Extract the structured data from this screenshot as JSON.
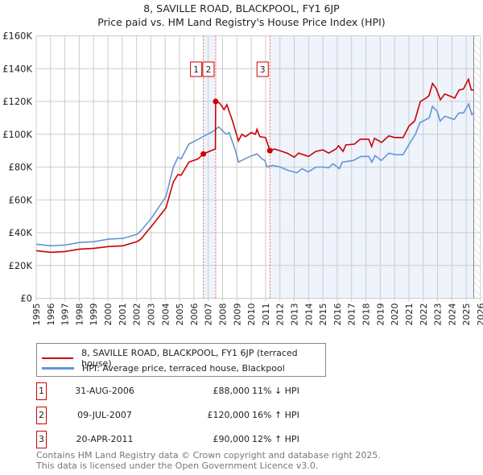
{
  "chart_data": {
    "type": "line",
    "title": "8, SAVILLE ROAD, BLACKPOOL, FY1 6JP",
    "subtitle": "Price paid vs. HM Land Registry's House Price Index (HPI)",
    "xlim": [
      1995,
      2026
    ],
    "ylim": [
      0,
      160000
    ],
    "y_ticks": [
      0,
      20000,
      40000,
      60000,
      80000,
      100000,
      120000,
      140000,
      160000
    ],
    "y_tick_labels": [
      "£0",
      "£20K",
      "£40K",
      "£60K",
      "£80K",
      "£100K",
      "£120K",
      "£140K",
      "£160K"
    ],
    "x_ticks": [
      1995,
      1996,
      1997,
      1998,
      1999,
      2000,
      2001,
      2002,
      2003,
      2004,
      2005,
      2006,
      2007,
      2008,
      2009,
      2010,
      2011,
      2012,
      2013,
      2014,
      2015,
      2016,
      2017,
      2018,
      2019,
      2020,
      2021,
      2022,
      2023,
      2024,
      2025,
      2026
    ],
    "grid": true,
    "colors": {
      "property": "#cc0000",
      "hpi": "#6495d2",
      "shade": "#eef3fc"
    },
    "series": [
      {
        "name": "8, SAVILLE ROAD, BLACKPOOL, FY1 6JP (terraced house)",
        "points": [
          [
            1995,
            29000
          ],
          [
            1996.02,
            28000
          ],
          [
            1997,
            28500
          ],
          [
            1998.03,
            30000
          ],
          [
            1999.05,
            30500
          ],
          [
            2000.02,
            31500
          ],
          [
            2001.04,
            32000
          ],
          [
            2002.03,
            34500
          ],
          [
            2002.29,
            36000
          ],
          [
            2003.05,
            44000
          ],
          [
            2004.05,
            55000
          ],
          [
            2004.57,
            71000
          ],
          [
            2004.89,
            75500
          ],
          [
            2005.11,
            75000
          ],
          [
            2005.65,
            83000
          ],
          [
            2006.3,
            85000
          ],
          [
            2006.66,
            88000
          ],
          [
            2007.2,
            90000
          ],
          [
            2007.5,
            91000
          ],
          [
            2007.52,
            120000
          ],
          [
            2007.8,
            119000
          ],
          [
            2008.1,
            115000
          ],
          [
            2008.3,
            118000
          ],
          [
            2008.7,
            108000
          ],
          [
            2009.1,
            96000
          ],
          [
            2009.35,
            100000
          ],
          [
            2009.6,
            98500
          ],
          [
            2010.0,
            101000
          ],
          [
            2010.3,
            100000
          ],
          [
            2010.4,
            103000
          ],
          [
            2010.6,
            98500
          ],
          [
            2011.0,
            98000
          ],
          [
            2011.3,
            90000
          ],
          [
            2011.6,
            91000
          ],
          [
            2012.0,
            90000
          ],
          [
            2012.5,
            88500
          ],
          [
            2013.0,
            86000
          ],
          [
            2013.3,
            88500
          ],
          [
            2014.0,
            86500
          ],
          [
            2014.5,
            89500
          ],
          [
            2015.0,
            90500
          ],
          [
            2015.4,
            88500
          ],
          [
            2015.9,
            91000
          ],
          [
            2016.1,
            93000
          ],
          [
            2016.4,
            89500
          ],
          [
            2016.6,
            93500
          ],
          [
            2017.2,
            94000
          ],
          [
            2017.6,
            97000
          ],
          [
            2018.2,
            97000
          ],
          [
            2018.4,
            92500
          ],
          [
            2018.6,
            97500
          ],
          [
            2019.1,
            95000
          ],
          [
            2019.6,
            99000
          ],
          [
            2020.0,
            98000
          ],
          [
            2020.6,
            98000
          ],
          [
            2021.0,
            105000
          ],
          [
            2021.4,
            108000
          ],
          [
            2021.8,
            120000
          ],
          [
            2022.2,
            122000
          ],
          [
            2022.4,
            123500
          ],
          [
            2022.65,
            131000
          ],
          [
            2022.9,
            128000
          ],
          [
            2023.2,
            121000
          ],
          [
            2023.5,
            124500
          ],
          [
            2023.8,
            123500
          ],
          [
            2024.2,
            122000
          ],
          [
            2024.5,
            127000
          ],
          [
            2024.8,
            127500
          ],
          [
            2025.15,
            133500
          ],
          [
            2025.35,
            127000
          ],
          [
            2025.52,
            127000
          ]
        ]
      },
      {
        "name": "HPI: Average price, terraced house, Blackpool",
        "points": [
          [
            1995,
            33000
          ],
          [
            1996.02,
            32000
          ],
          [
            1997,
            32500
          ],
          [
            1998.03,
            34000
          ],
          [
            1999.05,
            34500
          ],
          [
            2000.02,
            36000
          ],
          [
            2001.04,
            36500
          ],
          [
            2002.03,
            39000
          ],
          [
            2002.29,
            41000
          ],
          [
            2003.05,
            49000
          ],
          [
            2004.05,
            62000
          ],
          [
            2004.57,
            80000
          ],
          [
            2004.89,
            86000
          ],
          [
            2005.11,
            85000
          ],
          [
            2005.65,
            94000
          ],
          [
            2006.3,
            97000
          ],
          [
            2006.73,
            99000
          ],
          [
            2007.38,
            102000
          ],
          [
            2007.73,
            104500
          ],
          [
            2008.25,
            100000
          ],
          [
            2008.46,
            101000
          ],
          [
            2008.9,
            90000
          ],
          [
            2009.11,
            83000
          ],
          [
            2009.55,
            85000
          ],
          [
            2010.06,
            87000
          ],
          [
            2010.41,
            88000
          ],
          [
            2010.74,
            85000
          ],
          [
            2010.95,
            84000
          ],
          [
            2011.1,
            80000
          ],
          [
            2011.49,
            81000
          ],
          [
            2012.03,
            80000
          ],
          [
            2012.58,
            78000
          ],
          [
            2013.18,
            76500
          ],
          [
            2013.55,
            79000
          ],
          [
            2013.98,
            77000
          ],
          [
            2014.52,
            80000
          ],
          [
            2015.06,
            80000
          ],
          [
            2015.39,
            79500
          ],
          [
            2015.71,
            82000
          ],
          [
            2016.15,
            79000
          ],
          [
            2016.36,
            83000
          ],
          [
            2017.12,
            84000
          ],
          [
            2017.66,
            86500
          ],
          [
            2018.2,
            86500
          ],
          [
            2018.42,
            83000
          ],
          [
            2018.64,
            87000
          ],
          [
            2019.07,
            84000
          ],
          [
            2019.61,
            88500
          ],
          [
            2020.04,
            87500
          ],
          [
            2020.58,
            87500
          ],
          [
            2021.02,
            94000
          ],
          [
            2021.45,
            100000
          ],
          [
            2021.77,
            107000
          ],
          [
            2022.2,
            109000
          ],
          [
            2022.42,
            110000
          ],
          [
            2022.64,
            117000
          ],
          [
            2022.97,
            114000
          ],
          [
            2023.18,
            108000
          ],
          [
            2023.51,
            111000
          ],
          [
            2023.83,
            110000
          ],
          [
            2024.16,
            109000
          ],
          [
            2024.48,
            113000
          ],
          [
            2024.81,
            113000
          ],
          [
            2025.17,
            118500
          ],
          [
            2025.39,
            112000
          ],
          [
            2025.52,
            113000
          ]
        ]
      }
    ],
    "sales": [
      {
        "label": "1",
        "x": 2006.66,
        "y": 88000
      },
      {
        "label": "2",
        "x": 2007.52,
        "y": 120000
      },
      {
        "label": "3",
        "x": 2011.3,
        "y": 90000
      }
    ],
    "shaded_ranges": [
      [
        2006.66,
        2007.52
      ],
      [
        2011.3,
        2025.52
      ]
    ],
    "hatched_from": 2025.52,
    "legend_placement": "bottom"
  },
  "legend": {
    "property": "8, SAVILLE ROAD, BLACKPOOL, FY1 6JP (terraced house)",
    "hpi": "HPI: Average price, terraced house, Blackpool"
  },
  "sales_table": [
    {
      "num": "1",
      "date": "31-AUG-2006",
      "price": "£88,000",
      "hpi": "11% ↓ HPI"
    },
    {
      "num": "2",
      "date": "09-JUL-2007",
      "price": "£120,000",
      "hpi": "16% ↑ HPI"
    },
    {
      "num": "3",
      "date": "20-APR-2011",
      "price": "£90,000",
      "hpi": "12% ↑ HPI"
    }
  ],
  "footer": {
    "line1": "Contains HM Land Registry data © Crown copyright and database right 2025.",
    "line2": "This data is licensed under the Open Government Licence v3.0."
  }
}
